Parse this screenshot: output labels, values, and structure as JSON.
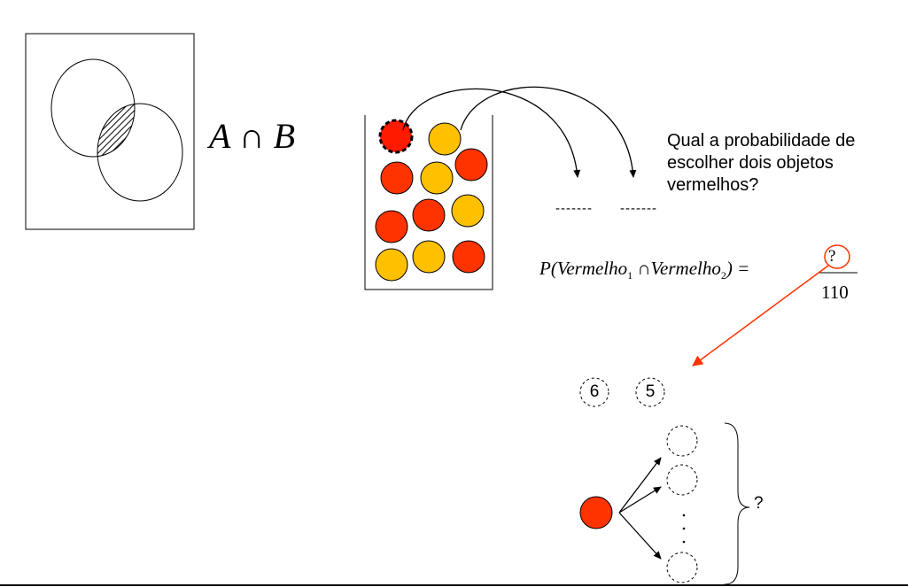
{
  "venn": {
    "expression": "A ∩ B",
    "colors": {
      "frame": "#000000",
      "hatch": "#000000"
    }
  },
  "jar": {
    "colors": {
      "red": "#ff3300",
      "selected_red": "#ff1a00",
      "yellow": "#ffc000"
    },
    "balls": [
      {
        "color": "red",
        "selected": true
      },
      {
        "color": "yellow"
      },
      {
        "color": "red"
      },
      {
        "color": "yellow"
      },
      {
        "color": "red"
      },
      {
        "color": "red"
      },
      {
        "color": "red"
      },
      {
        "color": "yellow"
      },
      {
        "color": "yellow"
      },
      {
        "color": "yellow"
      },
      {
        "color": "red"
      }
    ]
  },
  "question": {
    "text": "Qual a probabilidade de escolher dois objetos vermelhos?"
  },
  "draw_slots": {
    "slot1": "-------",
    "slot2": "-------"
  },
  "formula": {
    "lhs_prefix": "P(Vermelho",
    "sub1": "1",
    "middle": " ∩Vermelho",
    "sub2": "2",
    "suffix": ") =",
    "numerator": "?",
    "denominator": "110",
    "highlight_color": "#ff3300"
  },
  "counts": {
    "first": "6",
    "second": "5"
  },
  "tree": {
    "root_color": "#ff3300",
    "brace_label": "?"
  }
}
